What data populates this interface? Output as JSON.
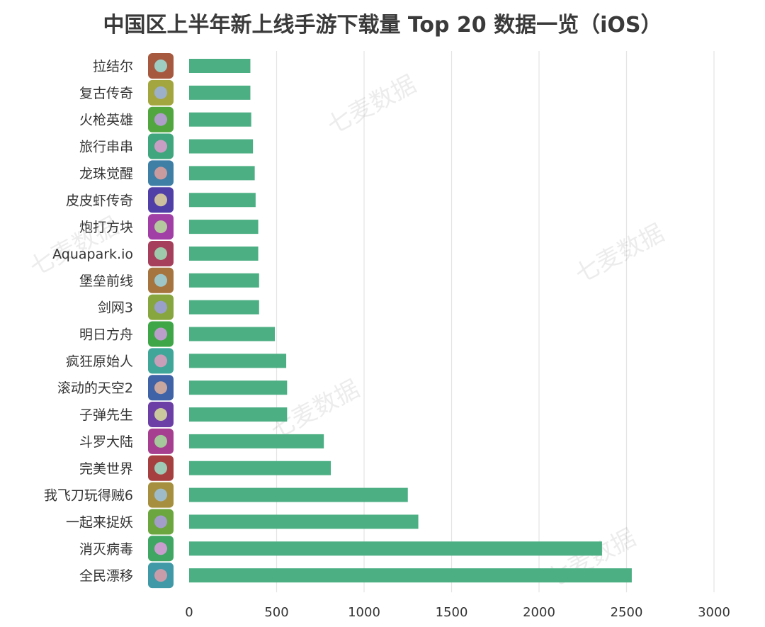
{
  "chart_data": {
    "type": "bar",
    "orientation": "horizontal",
    "title": "中国区上半年新上线手游下载量 Top 20 数据一览（iOS）",
    "categories": [
      "拉结尔",
      "复古传奇",
      "火枪英雄",
      "旅行串串",
      "龙珠觉醒",
      "皮皮虾传奇",
      "炮打方块",
      "Aquapark.io",
      "堡垒前线",
      "剑网3",
      "明日方舟",
      "疯狂原始人",
      "滚动的天空2",
      "子弹先生",
      "斗罗大陆",
      "完美世界",
      "我飞刀玩得贼6",
      "一起来捉妖",
      "消灭病毒",
      "全民漂移"
    ],
    "values": [
      350,
      350,
      355,
      365,
      375,
      380,
      395,
      395,
      400,
      400,
      490,
      555,
      560,
      560,
      770,
      810,
      1250,
      1310,
      2360,
      2530
    ],
    "xlim": [
      0,
      3000
    ],
    "xticks": [
      0,
      500,
      1000,
      1500,
      2000,
      2500,
      3000
    ],
    "xlabel": "",
    "ylabel": "",
    "grid": "vertical",
    "legend": "none",
    "bar_color": "#4caf83",
    "grid_color": "#e4e4e4"
  },
  "watermark": "七麦数据"
}
